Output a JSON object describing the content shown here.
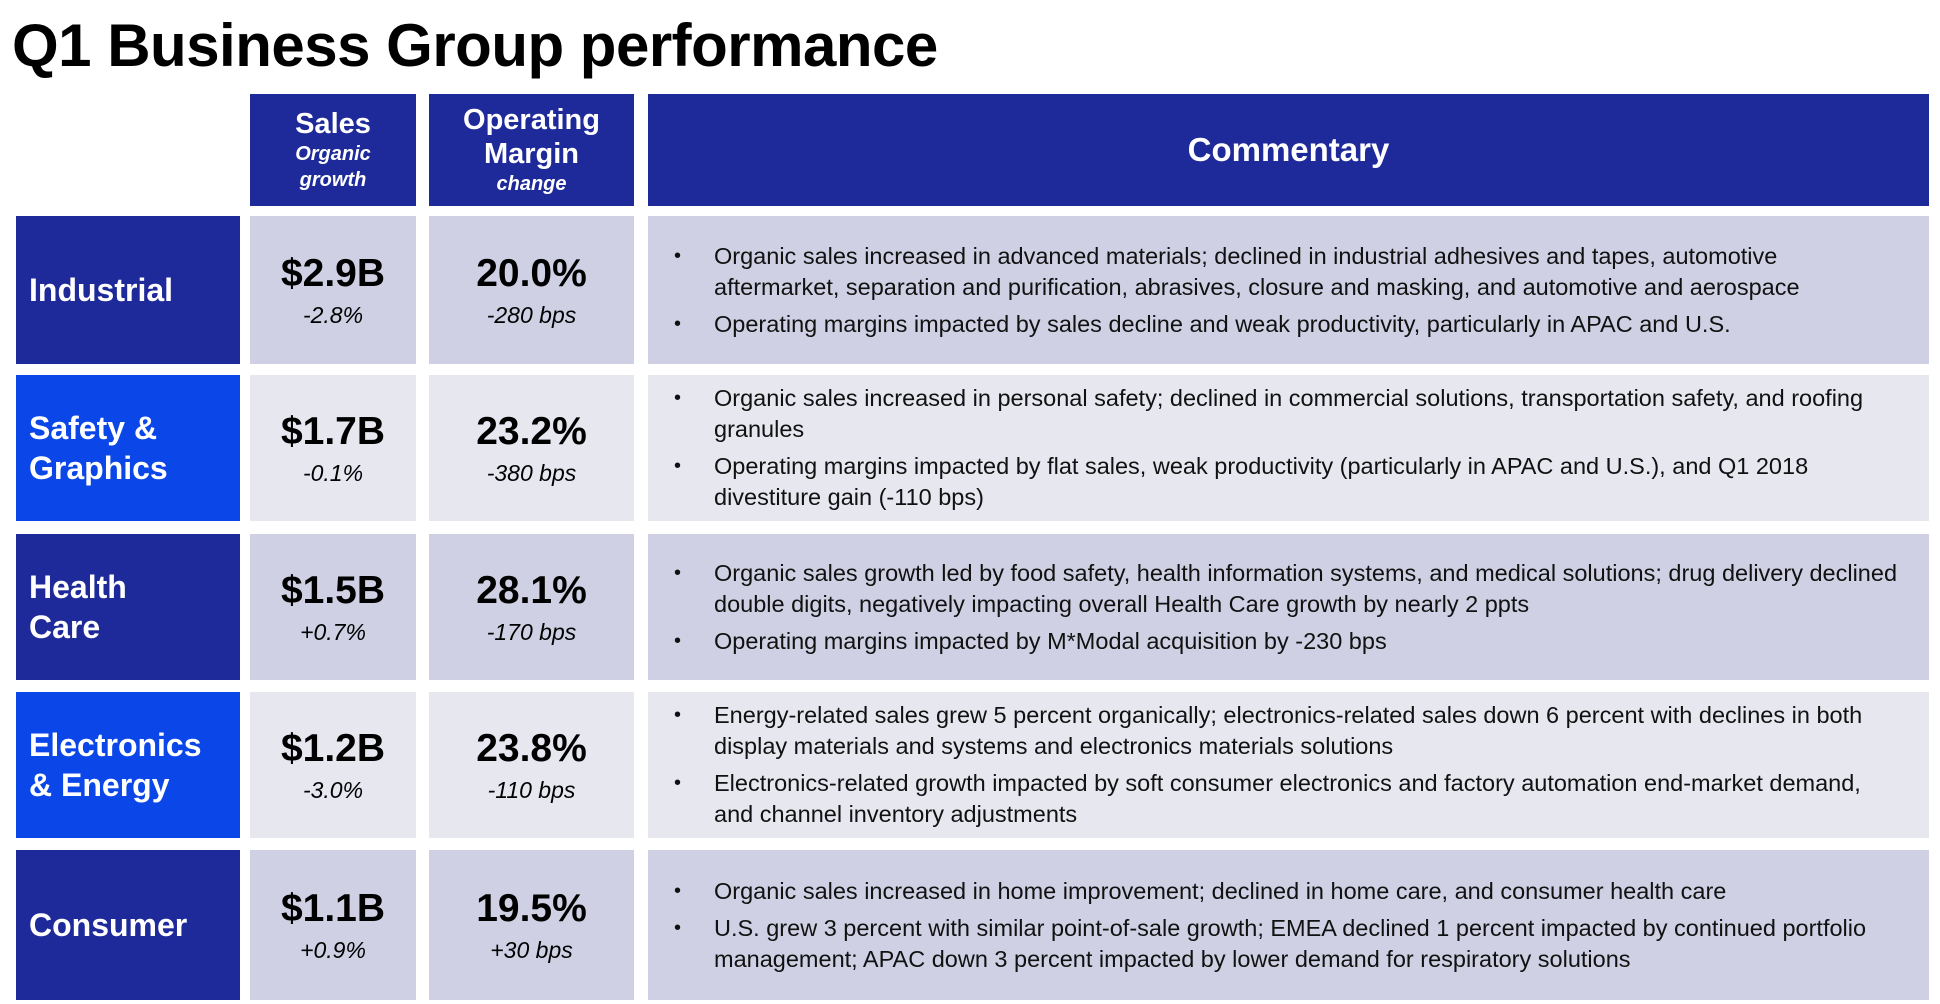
{
  "title": "Q1 Business Group performance",
  "headers": {
    "sales": {
      "main": "Sales",
      "sub1": "Organic",
      "sub2": "growth"
    },
    "margin": {
      "main1": "Operating",
      "main2": "Margin",
      "sub": "change"
    },
    "commentary": "Commentary"
  },
  "rows": [
    {
      "segment_line1": "Industrial",
      "segment_line2": "",
      "sales": "$2.9B",
      "growth": "-2.8%",
      "margin": "20.0%",
      "margin_change": "-280 bps",
      "comments": [
        "Organic sales increased in advanced materials; declined in industrial adhesives and tapes, automotive aftermarket, separation and purification, abrasives, closure and masking, and automotive and aerospace",
        "Operating margins impacted by sales decline and weak productivity, particularly in APAC and U.S."
      ]
    },
    {
      "segment_line1": "Safety &",
      "segment_line2": "Graphics",
      "sales": "$1.7B",
      "growth": "-0.1%",
      "margin": "23.2%",
      "margin_change": "-380 bps",
      "comments": [
        "Organic sales increased in personal safety; declined in commercial solutions, transportation safety, and roofing granules",
        "Operating margins impacted by flat sales, weak productivity (particularly in APAC and U.S.), and Q1 2018 divestiture gain (-110 bps)"
      ]
    },
    {
      "segment_line1": "Health",
      "segment_line2": "Care",
      "sales": "$1.5B",
      "growth": "+0.7%",
      "margin": "28.1%",
      "margin_change": "-170 bps",
      "comments": [
        "Organic sales growth led by food safety, health information systems, and medical solutions; drug delivery declined double digits, negatively impacting overall Health Care growth by nearly 2 ppts",
        "Operating margins impacted by M*Modal acquisition by -230 bps"
      ]
    },
    {
      "segment_line1": "Electronics",
      "segment_line2": "& Energy",
      "sales": "$1.2B",
      "growth": "-3.0%",
      "margin": "23.8%",
      "margin_change": "-110 bps",
      "comments": [
        "Energy-related sales grew 5 percent organically; electronics-related sales down 6 percent with declines in both display materials and systems and electronics materials solutions",
        "Electronics-related growth impacted by soft consumer electronics and factory automation end-market demand, and channel inventory adjustments"
      ]
    },
    {
      "segment_line1": "Consumer",
      "segment_line2": "",
      "sales": "$1.1B",
      "growth": "+0.9%",
      "margin": "19.5%",
      "margin_change": "+30 bps",
      "comments": [
        "Organic sales increased in home improvement; declined in home care, and consumer health care",
        "U.S. grew 3 percent with similar point-of-sale growth; EMEA declined 1 percent impacted by continued portfolio management; APAC down 3 percent impacted by lower demand for respiratory solutions"
      ]
    }
  ],
  "colors": {
    "header_bg": "#1f2a9a",
    "segment_dark": "#1f2a9a",
    "segment_bright": "#0a46e8",
    "row_shade_a": "#cfd0e3",
    "row_shade_b": "#e6e7ef"
  }
}
